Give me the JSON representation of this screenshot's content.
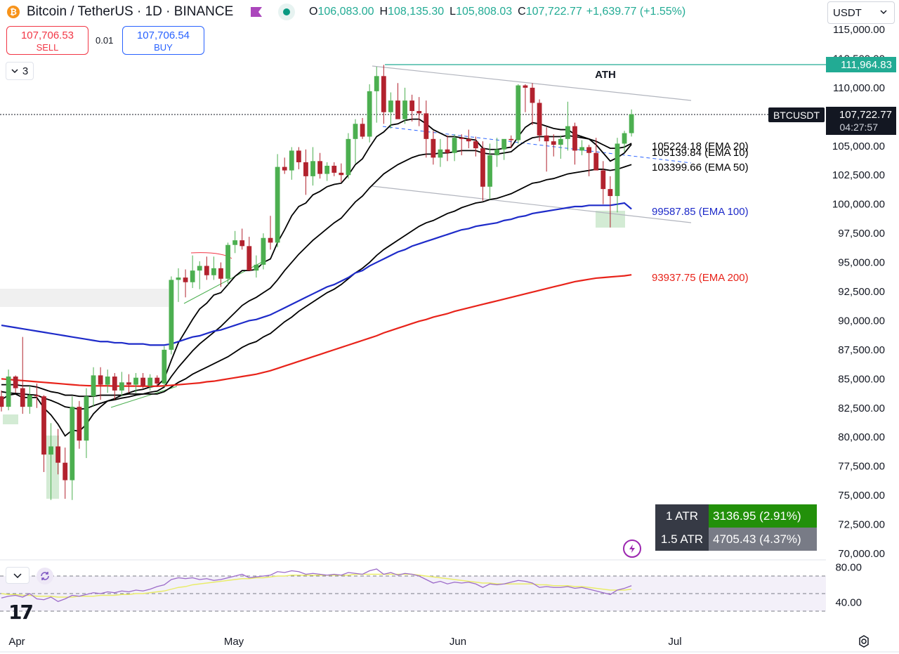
{
  "header": {
    "symbol_title": "Bitcoin / TetherUS · 1D · BINANCE",
    "ohlc": [
      {
        "label": "O",
        "value": "106,083.00"
      },
      {
        "label": "H",
        "value": "108,135.30"
      },
      {
        "label": "L",
        "value": "105,808.03"
      },
      {
        "label": "C",
        "value": "107,722.77"
      }
    ],
    "change": "+1,639.77 (+1.55%)",
    "currency": "USDT",
    "colors": {
      "up": "#22ab94",
      "down": "#f23645",
      "accent": "#2962ff"
    }
  },
  "trade": {
    "sell_price": "107,706.53",
    "sell_label": "SELL",
    "spread": "0.01",
    "buy_price": "107,706.54",
    "buy_label": "BUY"
  },
  "layers_count": "3",
  "labels": {
    "ath_text": "ATH",
    "ath_price": "111,964.83",
    "ticker_tag": "BTCUSDT",
    "last_price": "107,722.77",
    "countdown": "04:27:57"
  },
  "atr": [
    {
      "label": "1 ATR",
      "value": "3136.95 (2.91%)",
      "color": "#22900a"
    },
    {
      "label": "1.5 ATR",
      "value": "4705.43 (4.37%)",
      "color": "#787b86"
    }
  ],
  "chart_data": {
    "type": "candlestick",
    "symbol": "BTCUSDT",
    "interval": "1D",
    "ylim": [
      70000,
      115000
    ],
    "y_ticks": [
      "115,000.00",
      "112,500.00",
      "110,000.00",
      "107,500.00",
      "105,000.00",
      "102,500.00",
      "100,000.00",
      "97,500.00",
      "95,000.00",
      "92,500.00",
      "90,000.00",
      "87,500.00",
      "85,000.00",
      "82,500.00",
      "80,000.00",
      "77,500.00",
      "75,000.00",
      "72,500.00",
      "70,000.00"
    ],
    "x_ticks": [
      "Apr",
      "May",
      "Jun",
      "Jul"
    ],
    "candles": [
      [
        83500,
        84000,
        82200,
        82600
      ],
      [
        82600,
        85800,
        82300,
        85200
      ],
      [
        85200,
        85300,
        83800,
        84200
      ],
      [
        84200,
        88600,
        82000,
        82600
      ],
      [
        82600,
        84400,
        82000,
        83600
      ],
      [
        83600,
        84600,
        82500,
        83500
      ],
      [
        83500,
        83600,
        77000,
        78500
      ],
      [
        78500,
        81200,
        74600,
        79200
      ],
      [
        79200,
        80700,
        76800,
        77800
      ],
      [
        77800,
        79100,
        74700,
        76300
      ],
      [
        76300,
        83500,
        74600,
        82600
      ],
      [
        82600,
        83100,
        79000,
        79700
      ],
      [
        79700,
        84200,
        78200,
        83500
      ],
      [
        83500,
        86000,
        82600,
        85300
      ],
      [
        85300,
        86000,
        83200,
        84500
      ],
      [
        84500,
        85800,
        83800,
        85200
      ],
      [
        85200,
        85500,
        83200,
        84000
      ],
      [
        84000,
        85600,
        83500,
        84700
      ],
      [
        84700,
        85400,
        83800,
        84500
      ],
      [
        84500,
        85500,
        83800,
        85100
      ],
      [
        85100,
        85500,
        84200,
        84400
      ],
      [
        84400,
        85400,
        84000,
        85100
      ],
      [
        85100,
        85300,
        84300,
        84600
      ],
      [
        84600,
        87800,
        84300,
        87500
      ],
      [
        87500,
        93800,
        87100,
        93500
      ],
      [
        93500,
        94500,
        91600,
        93700
      ],
      [
        93700,
        94400,
        92000,
        93300
      ],
      [
        93300,
        95600,
        92800,
        94300
      ],
      [
        94300,
        95100,
        92700,
        94700
      ],
      [
        94700,
        95500,
        93500,
        93900
      ],
      [
        93900,
        95500,
        93500,
        94500
      ],
      [
        94500,
        95000,
        92900,
        93600
      ],
      [
        93600,
        96700,
        93100,
        96500
      ],
      [
        96500,
        97700,
        95800,
        96900
      ],
      [
        96900,
        97900,
        96100,
        96400
      ],
      [
        96400,
        97200,
        94300,
        94300
      ],
      [
        94300,
        95600,
        93700,
        94800
      ],
      [
        94800,
        97500,
        94400,
        97100
      ],
      [
        97100,
        99000,
        96100,
        96700
      ],
      [
        96700,
        104300,
        96300,
        103200
      ],
      [
        103200,
        104000,
        102600,
        102900
      ],
      [
        102900,
        104900,
        102100,
        104600
      ],
      [
        104600,
        104900,
        103000,
        103600
      ],
      [
        103600,
        104700,
        100800,
        102400
      ],
      [
        102400,
        104900,
        101600,
        103700
      ],
      [
        103700,
        104400,
        102200,
        102600
      ],
      [
        102600,
        103600,
        102000,
        103300
      ],
      [
        103300,
        103600,
        102400,
        102700
      ],
      [
        102700,
        103500,
        101900,
        102500
      ],
      [
        102500,
        106100,
        102200,
        105600
      ],
      [
        105600,
        107300,
        103500,
        106900
      ],
      [
        106900,
        107400,
        105600,
        105800
      ],
      [
        105800,
        110300,
        105300,
        109700
      ],
      [
        109700,
        111800,
        107000,
        111000
      ],
      [
        111000,
        111960,
        106900,
        107900
      ],
      [
        107900,
        109600,
        106500,
        108900
      ],
      [
        108900,
        110400,
        107600,
        107300
      ],
      [
        107300,
        110000,
        106900,
        108900
      ],
      [
        108900,
        109400,
        107100,
        108000
      ],
      [
        108000,
        109200,
        106700,
        107800
      ],
      [
        107800,
        108900,
        104000,
        105600
      ],
      [
        105600,
        106300,
        103400,
        104000
      ],
      [
        104000,
        105600,
        103200,
        104700
      ],
      [
        104700,
        105900,
        103700,
        104400
      ],
      [
        104400,
        106000,
        103700,
        105700
      ],
      [
        105700,
        106000,
        104200,
        105600
      ],
      [
        105600,
        106400,
        104800,
        105400
      ],
      [
        105400,
        105800,
        104100,
        104800
      ],
      [
        104800,
        105400,
        100300,
        101500
      ],
      [
        101500,
        105200,
        100400,
        104200
      ],
      [
        104200,
        105700,
        103200,
        104700
      ],
      [
        104700,
        105400,
        103800,
        105600
      ],
      [
        105600,
        105900,
        104800,
        105500
      ],
      [
        105500,
        110300,
        105200,
        110200
      ],
      [
        110200,
        110300,
        107900,
        110000
      ],
      [
        110000,
        110400,
        106800,
        108700
      ],
      [
        108700,
        109000,
        105400,
        105900
      ],
      [
        105900,
        106600,
        102800,
        105400
      ],
      [
        105400,
        106000,
        104100,
        105100
      ],
      [
        105100,
        105900,
        103900,
        105600
      ],
      [
        105600,
        108800,
        104600,
        106700
      ],
      [
        106700,
        107000,
        103400,
        104600
      ],
      [
        104600,
        105500,
        104200,
        104900
      ],
      [
        104900,
        105100,
        102400,
        104400
      ],
      [
        104400,
        105700,
        103100,
        102900
      ],
      [
        102900,
        103700,
        100000,
        101300
      ],
      [
        101300,
        102400,
        98000,
        100700
      ],
      [
        100700,
        105700,
        99300,
        105200
      ],
      [
        105200,
        106300,
        104500,
        106100
      ],
      [
        106100,
        108135,
        105808,
        107722
      ]
    ],
    "emas": [
      {
        "label": "105224.18 (EMA 20)",
        "color": "#000000",
        "values": [
          83900,
          83800,
          83750,
          83700,
          83650,
          83600,
          83350,
          83150,
          82900,
          82600,
          82500,
          82400,
          82450,
          82700,
          82900,
          83100,
          83200,
          83350,
          83450,
          83600,
          83700,
          83850,
          83950,
          84300,
          85200,
          86000,
          86700,
          87400,
          88000,
          88500,
          89000,
          89500,
          90100,
          90700,
          91300,
          91700,
          92000,
          92400,
          92800,
          93500,
          94300,
          95000,
          95700,
          96300,
          96900,
          97400,
          97900,
          98400,
          98800,
          99500,
          100200,
          100700,
          101400,
          102000,
          102600,
          103000,
          103400,
          103700,
          104000,
          104200,
          104300,
          104300,
          104400,
          104400,
          104500,
          104600,
          104600,
          104600,
          104400,
          104300,
          104300,
          104400,
          104500,
          105000,
          105400,
          105700,
          105800,
          105800,
          105800,
          105800,
          105900,
          105800,
          105700,
          105600,
          105400,
          105100,
          104800,
          104800,
          104900,
          105224
        ]
      },
      {
        "label": "105139.84 (EMA 10)",
        "color": "#000000",
        "values": [
          83200,
          83600,
          83700,
          83400,
          83400,
          83400,
          82500,
          81900,
          81100,
          80100,
          80600,
          80500,
          81100,
          82000,
          82600,
          83100,
          83300,
          83600,
          83800,
          84000,
          84100,
          84300,
          84400,
          85000,
          86600,
          88100,
          89100,
          90100,
          91000,
          91500,
          92200,
          92400,
          93100,
          93800,
          94300,
          94300,
          94400,
          95000,
          95300,
          96700,
          97800,
          99000,
          99800,
          100100,
          100800,
          101100,
          101500,
          101700,
          101800,
          102500,
          103400,
          103900,
          104900,
          105800,
          106200,
          106800,
          106900,
          107200,
          107300,
          107300,
          106900,
          106400,
          106100,
          105800,
          105800,
          105700,
          105600,
          105500,
          104800,
          104700,
          104700,
          104800,
          104900,
          105800,
          106600,
          107000,
          106900,
          106700,
          106500,
          106400,
          106400,
          106000,
          105800,
          105600,
          105100,
          104400,
          103700,
          104000,
          104400,
          105139
        ]
      },
      {
        "label": "103399.66 (EMA 50)",
        "color": "#000000",
        "values": [
          84500,
          84500,
          84500,
          84400,
          84400,
          84300,
          84100,
          83900,
          83800,
          83600,
          83600,
          83500,
          83500,
          83500,
          83600,
          83600,
          83600,
          83600,
          83700,
          83700,
          83700,
          83700,
          83700,
          83900,
          84300,
          84700,
          85000,
          85400,
          85700,
          86000,
          86300,
          86600,
          86900,
          87300,
          87700,
          88000,
          88200,
          88600,
          88900,
          89400,
          89900,
          90300,
          90800,
          91200,
          91600,
          92000,
          92400,
          92700,
          93100,
          93600,
          94100,
          94500,
          95000,
          95600,
          96100,
          96500,
          96900,
          97300,
          97700,
          98100,
          98400,
          98600,
          98900,
          99200,
          99400,
          99700,
          99900,
          100100,
          100200,
          100400,
          100500,
          100700,
          100900,
          101200,
          101500,
          101800,
          101900,
          102100,
          102200,
          102400,
          102600,
          102700,
          102800,
          102900,
          103000,
          103000,
          102900,
          103000,
          103200,
          103399
        ]
      },
      {
        "label": "99587.85 (EMA 100)",
        "color": "#1e2bc9",
        "values": [
          89600,
          89500,
          89400,
          89300,
          89200,
          89100,
          89000,
          88900,
          88800,
          88700,
          88600,
          88500,
          88400,
          88300,
          88200,
          88200,
          88100,
          88100,
          88000,
          88000,
          88000,
          87900,
          87900,
          87900,
          88000,
          88200,
          88400,
          88600,
          88700,
          88900,
          89100,
          89200,
          89400,
          89600,
          89800,
          90000,
          90100,
          90300,
          90500,
          90800,
          91100,
          91400,
          91700,
          92000,
          92300,
          92600,
          92900,
          93100,
          93400,
          93700,
          94100,
          94300,
          94700,
          95000,
          95300,
          95600,
          95900,
          96100,
          96400,
          96600,
          96800,
          97000,
          97200,
          97400,
          97600,
          97800,
          97900,
          98100,
          98200,
          98300,
          98400,
          98600,
          98700,
          98900,
          99000,
          99200,
          99300,
          99400,
          99500,
          99600,
          99700,
          99800,
          99800,
          99900,
          99900,
          99900,
          99900,
          100000,
          100100,
          99588
        ]
      },
      {
        "label": "93937.75 (EMA 200)",
        "color": "#e8231a",
        "values": [
          85000,
          84950,
          84900,
          84850,
          84800,
          84750,
          84700,
          84650,
          84600,
          84550,
          84500,
          84450,
          84420,
          84400,
          84400,
          84400,
          84380,
          84380,
          84380,
          84380,
          84370,
          84370,
          84370,
          84400,
          84450,
          84500,
          84550,
          84600,
          84650,
          84750,
          84800,
          84900,
          85000,
          85100,
          85200,
          85300,
          85400,
          85550,
          85700,
          85900,
          86100,
          86300,
          86500,
          86700,
          86900,
          87100,
          87300,
          87500,
          87700,
          87900,
          88100,
          88300,
          88500,
          88700,
          88950,
          89150,
          89350,
          89550,
          89750,
          89950,
          90100,
          90300,
          90450,
          90600,
          90800,
          90950,
          91100,
          91250,
          91400,
          91550,
          91700,
          91850,
          92000,
          92150,
          92300,
          92450,
          92600,
          92750,
          92900,
          93050,
          93200,
          93350,
          93450,
          93550,
          93650,
          93700,
          93750,
          93800,
          93850,
          93938
        ]
      }
    ],
    "rsi": {
      "y_ticks": [
        "80.00",
        "40.00"
      ],
      "ylim": [
        30,
        82
      ],
      "bands": [
        70,
        50,
        30
      ],
      "rsi_values": [
        45,
        47,
        48,
        46,
        50,
        44,
        43,
        46,
        41,
        44,
        48,
        47,
        49,
        51,
        50,
        52,
        51,
        53,
        52,
        54,
        53,
        55,
        58,
        60,
        66,
        68,
        67,
        68,
        66,
        67,
        65,
        66,
        68,
        70,
        72,
        68,
        69,
        70,
        71,
        75,
        74,
        76,
        75,
        72,
        73,
        72,
        71,
        72,
        71,
        74,
        73,
        72,
        76,
        78,
        72,
        74,
        71,
        73,
        72,
        70,
        66,
        62,
        64,
        61,
        63,
        62,
        63,
        61,
        57,
        61,
        60,
        61,
        63,
        65,
        64,
        62,
        57,
        58,
        57,
        57,
        58,
        56,
        57,
        55,
        53,
        51,
        49,
        54,
        56,
        59
      ],
      "ma_values": [
        50,
        49,
        49,
        48,
        48,
        47,
        47,
        47,
        46,
        46,
        46,
        47,
        47,
        47,
        48,
        48,
        48,
        49,
        49,
        50,
        50,
        51,
        52,
        53,
        55,
        57,
        58,
        60,
        61,
        62,
        63,
        64,
        65,
        66,
        67,
        67,
        68,
        68,
        69,
        70,
        70,
        71,
        71,
        71,
        71,
        71,
        71,
        71,
        71,
        71,
        72,
        72,
        72,
        72,
        72,
        72,
        72,
        72,
        72,
        71,
        70,
        69,
        68,
        67,
        66,
        65,
        64,
        63,
        62,
        62,
        61,
        61,
        61,
        61,
        61,
        61,
        60,
        60,
        59,
        59,
        59,
        58,
        58,
        57,
        56,
        55,
        54,
        54,
        54,
        55
      ]
    }
  }
}
